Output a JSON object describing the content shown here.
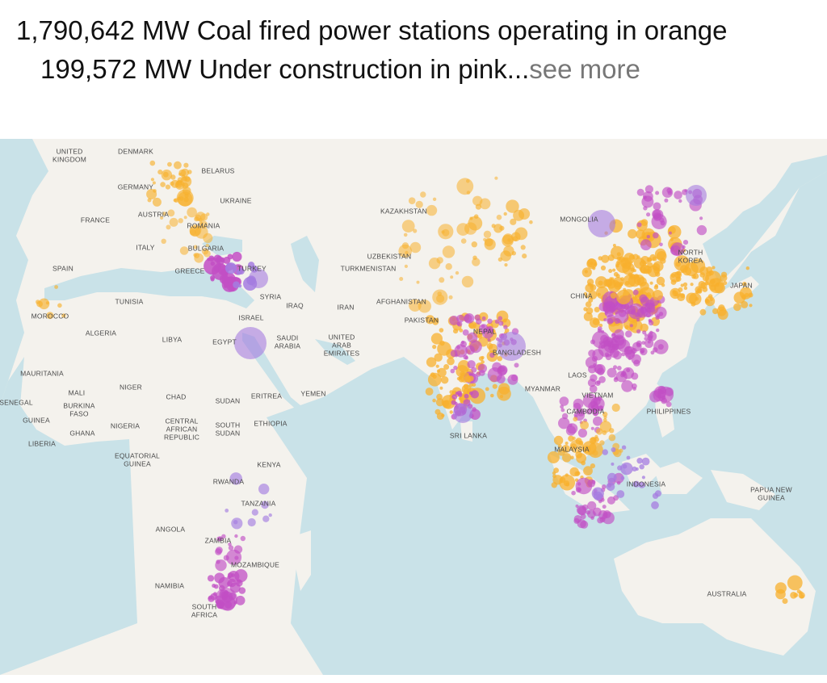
{
  "post": {
    "lines": [
      "1,790,642 MW Coal fired power stations operating in orange",
      "199,572 MW Under construction in pink..."
    ],
    "see_more": "see more"
  },
  "map": {
    "labels": [
      [
        "UNITED",
        "KINGDOM"
      ],
      [
        "DENMARK"
      ],
      [
        "BELARUS"
      ],
      [
        "GERMANY"
      ],
      [
        "UKRAINE"
      ],
      [
        "FRANCE"
      ],
      [
        "AUSTRIA"
      ],
      [
        "ROMANIA"
      ],
      [
        "ITALY"
      ],
      [
        "BULGARIA"
      ],
      [
        "GREECE"
      ],
      [
        "TURKEY"
      ],
      [
        "SPAIN"
      ],
      [
        "MOROCCO"
      ],
      [
        "TUNISIA"
      ],
      [
        "ALGERIA"
      ],
      [
        "LIBYA"
      ],
      [
        "EGYPT"
      ],
      [
        "ISRAEL"
      ],
      [
        "SYRIA"
      ],
      [
        "IRAQ"
      ],
      [
        "IRAN"
      ],
      [
        "SAUDI",
        "ARABIA"
      ],
      [
        "UNITED",
        "ARAB",
        "EMIRATES"
      ],
      [
        "KAZAKHSTAN"
      ],
      [
        "UZBEKISTAN"
      ],
      [
        "TURKMENISTAN"
      ],
      [
        "AFGHANISTAN"
      ],
      [
        "PAKISTAN"
      ],
      [
        "NEPAL"
      ],
      [
        "BANGLADESH"
      ],
      [
        "MONGOLIA"
      ],
      [
        "CHINA"
      ],
      [
        "NORTH",
        "KOREA"
      ],
      [
        "JAPAN"
      ],
      [
        "MYANMAR"
      ],
      [
        "LAOS"
      ],
      [
        "VIETNAM"
      ],
      [
        "CAMBODIA"
      ],
      [
        "PHILIPPINES"
      ],
      [
        "SRI LANKA"
      ],
      [
        "MALAYSIA"
      ],
      [
        "INDONESIA"
      ],
      [
        "PAPUA NEW",
        "GUINEA"
      ],
      [
        "AUSTRALIA"
      ],
      [
        "MAURITANIA"
      ],
      [
        "MALI"
      ],
      [
        "NIGER"
      ],
      [
        "CHAD"
      ],
      [
        "SUDAN"
      ],
      [
        "ERITREA"
      ],
      [
        "YEMEN"
      ],
      [
        "SENEGAL"
      ],
      [
        "BURKINA",
        "FASO"
      ],
      [
        "GUINEA"
      ],
      [
        "GHANA"
      ],
      [
        "NIGERIA"
      ],
      [
        "CENTRAL",
        "AFRICAN",
        "REPUBLIC"
      ],
      [
        "SOUTH",
        "SUDAN"
      ],
      [
        "ETHIOPIA"
      ],
      [
        "LIBERIA"
      ],
      [
        "EQUATORIAL",
        "GUINEA"
      ],
      [
        "KENYA"
      ],
      [
        "RWANDA"
      ],
      [
        "TANZANIA"
      ],
      [
        "ANGOLA"
      ],
      [
        "ZAMBIA"
      ],
      [
        "MOZAMBIQUE"
      ],
      [
        "NAMIBIA"
      ],
      [
        "SOUTH",
        "AFRICA"
      ]
    ]
  }
}
